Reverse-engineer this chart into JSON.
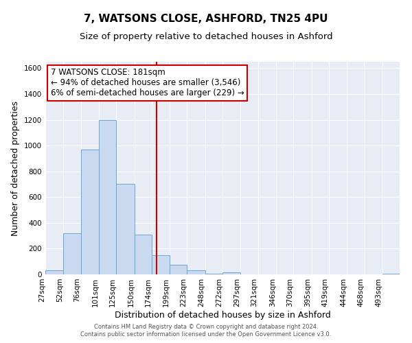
{
  "title": "7, WATSONS CLOSE, ASHFORD, TN25 4PU",
  "subtitle": "Size of property relative to detached houses in Ashford",
  "xlabel": "Distribution of detached houses by size in Ashford",
  "ylabel": "Number of detached properties",
  "bin_edges": [
    27,
    52,
    76,
    101,
    125,
    150,
    174,
    199,
    223,
    248,
    272,
    297,
    321,
    346,
    370,
    395,
    419,
    444,
    468,
    493,
    517
  ],
  "bar_heights": [
    30,
    320,
    970,
    1200,
    700,
    310,
    150,
    75,
    30,
    5,
    15,
    0,
    0,
    0,
    0,
    0,
    0,
    0,
    0,
    5
  ],
  "bar_color": "#c9d9f0",
  "bar_edge_color": "#6da4d4",
  "property_line_x": 181,
  "property_line_color": "#cc0000",
  "annotation_line1": "7 WATSONS CLOSE: 181sqm",
  "annotation_line2": "← 94% of detached houses are smaller (3,546)",
  "annotation_line3": "6% of semi-detached houses are larger (229) →",
  "annotation_box_color": "#cc0000",
  "ylim": [
    0,
    1650
  ],
  "yticks": [
    0,
    200,
    400,
    600,
    800,
    1000,
    1200,
    1400,
    1600
  ],
  "background_color": "#e8edf5",
  "grid_color": "#ffffff",
  "footer_line1": "Contains HM Land Registry data © Crown copyright and database right 2024.",
  "footer_line2": "Contains public sector information licensed under the Open Government Licence v3.0.",
  "title_fontsize": 11,
  "subtitle_fontsize": 9.5,
  "tick_label_fontsize": 7.5,
  "axis_label_fontsize": 9,
  "annotation_fontsize": 8.5,
  "footer_fontsize": 6.0
}
